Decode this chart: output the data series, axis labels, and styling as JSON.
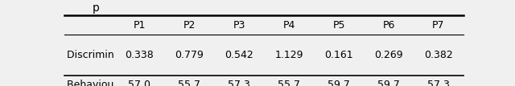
{
  "columns": [
    "",
    "P1",
    "P2",
    "P3",
    "P4",
    "P5",
    "P6",
    "P7"
  ],
  "rows": [
    [
      "Discrimination threshold",
      "0.338",
      "0.779",
      "0.542",
      "1.129",
      "0.161",
      "0.269",
      "0.382"
    ],
    [
      "Behavioural performance",
      "57.0",
      "55.7",
      "57.3",
      "55.7",
      "59.7",
      "59.7",
      "57.3"
    ]
  ],
  "background_color": "#f0f0f0",
  "text_color": "#000000",
  "font_size": 9,
  "figsize": [
    6.4,
    1.07
  ],
  "dpi": 100,
  "partial_title": "p"
}
